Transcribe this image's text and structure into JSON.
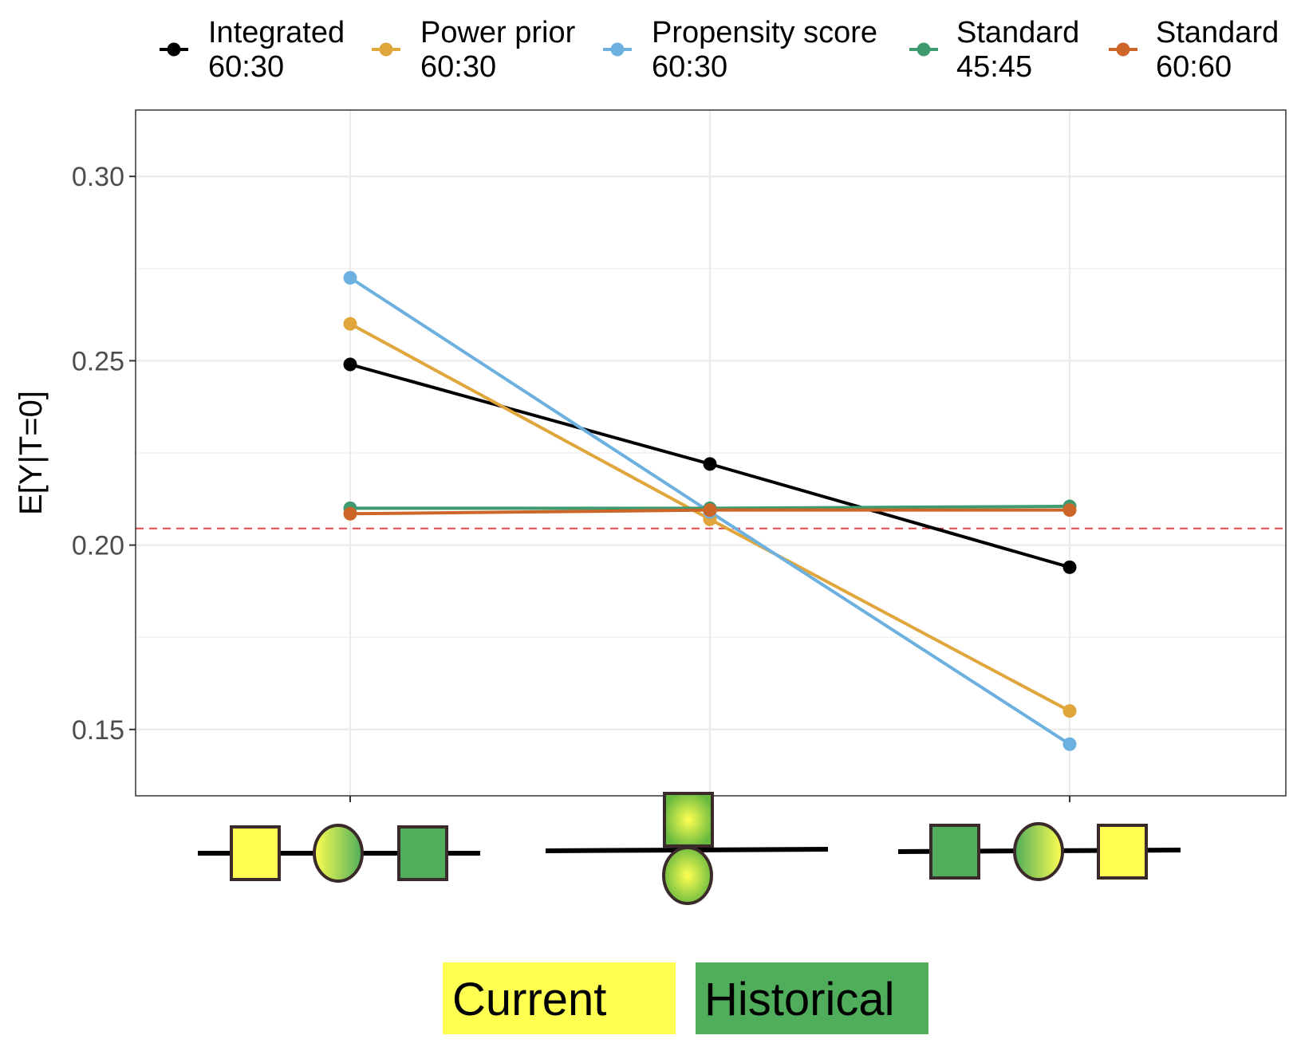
{
  "chart_data": {
    "type": "line",
    "ylabel": "E[Y|T=0]",
    "xlabel": "",
    "ylim": [
      0.132,
      0.318
    ],
    "yticks": [
      0.15,
      0.2,
      0.25,
      0.3
    ],
    "ytick_labels": [
      "0.15",
      "0.20",
      "0.25",
      "0.30"
    ],
    "x_categories": [
      "current-middle-historical",
      "mixed",
      "historical-middle-current"
    ],
    "grid": true,
    "legend_position": "top",
    "reference_line": {
      "y": 0.2045,
      "style": "dashed",
      "color": "#e0474c"
    },
    "series": [
      {
        "key": "integrated",
        "label_line1": "Integrated",
        "label_line2": "60:30",
        "color": "#000000",
        "values": [
          0.249,
          0.222,
          0.194
        ]
      },
      {
        "key": "power",
        "label_line1": "Power prior",
        "label_line2": "60:30",
        "color": "#e0a53b",
        "values": [
          0.26,
          0.207,
          0.155
        ]
      },
      {
        "key": "propensity",
        "label_line1": "Propensity score",
        "label_line2": "60:30",
        "color": "#6cb0e0",
        "values": [
          0.2725,
          0.209,
          0.146
        ]
      },
      {
        "key": "std4545",
        "label_line1": "Standard",
        "label_line2": "45:45",
        "color": "#3f9a70",
        "values": [
          0.21,
          0.21,
          0.2105
        ]
      },
      {
        "key": "std6060",
        "label_line1": "Standard",
        "label_line2": "60:60",
        "color": "#cc6528",
        "values": [
          0.2085,
          0.2095,
          0.2095
        ]
      }
    ],
    "annotations": {
      "current_label": "Current",
      "historical_label": "Historical",
      "current_color": "#ffff52",
      "historical_color": "#4fad5b"
    }
  }
}
